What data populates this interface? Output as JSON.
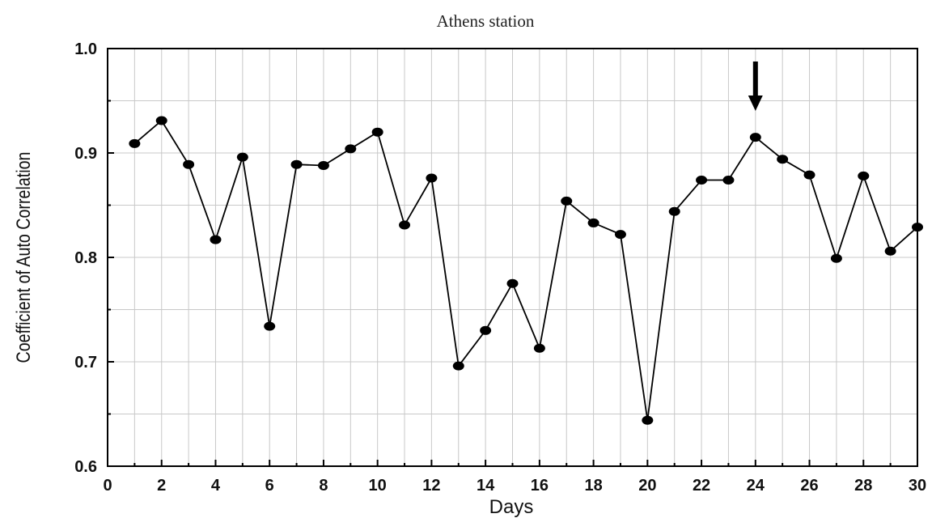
{
  "chart_data": {
    "type": "line",
    "title": "Athens station",
    "xlabel": "Days",
    "ylabel": "Coefficient of Auto Correlation",
    "xlim": [
      0,
      30
    ],
    "ylim": [
      0.6,
      1.0
    ],
    "xticks": [
      0,
      2,
      4,
      6,
      8,
      10,
      12,
      14,
      16,
      18,
      20,
      22,
      24,
      26,
      28,
      30
    ],
    "yticks": [
      0.6,
      0.7,
      0.8,
      0.9,
      1.0
    ],
    "ytick_labels": [
      "0.6",
      "0.7",
      "0.8",
      "0.9",
      "1.0"
    ],
    "grid": true,
    "marker": "filled-circle",
    "color": "#000000",
    "annotation": {
      "type": "arrow-down",
      "x": 24
    },
    "x": [
      1,
      2,
      3,
      4,
      5,
      6,
      7,
      8,
      9,
      10,
      11,
      12,
      13,
      14,
      15,
      16,
      17,
      18,
      19,
      20,
      21,
      22,
      23,
      24,
      25,
      26,
      27,
      28,
      29,
      30
    ],
    "y": [
      0.909,
      0.931,
      0.889,
      0.817,
      0.896,
      0.734,
      0.889,
      0.888,
      0.904,
      0.92,
      0.831,
      0.876,
      0.696,
      0.73,
      0.775,
      0.713,
      0.854,
      0.833,
      0.822,
      0.644,
      0.844,
      0.874,
      0.874,
      0.915,
      0.894,
      0.879,
      0.799,
      0.878,
      0.806,
      0.829
    ]
  }
}
